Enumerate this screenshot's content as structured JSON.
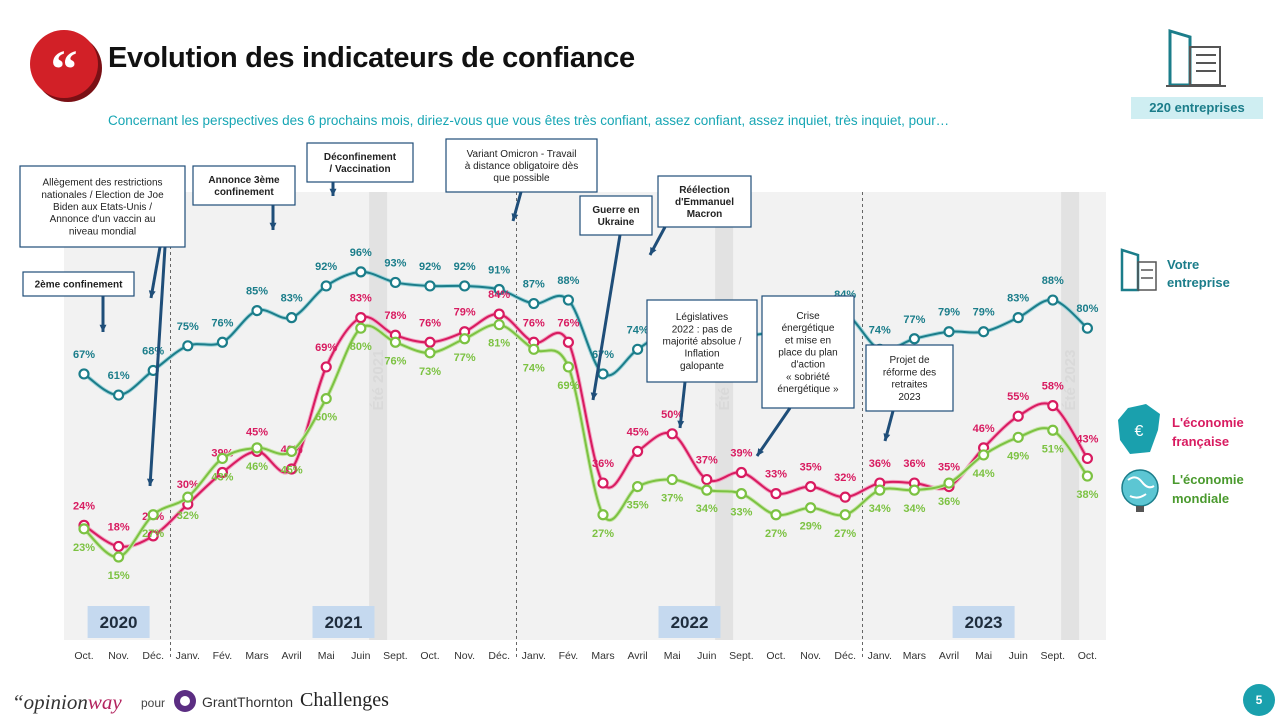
{
  "header": {
    "title": "Evolution des indicateurs de confiance",
    "subtitle": "Concernant les perspectives des 6 prochains mois, diriez-vous que vous êtes très confiant, assez confiant, assez inquiet, très inquiet, pour…",
    "sample": "220 entreprises",
    "quote_glyph": "“"
  },
  "footer": {
    "opinionway_prefix": "“opinion",
    "opinionway_suffix": "way",
    "pour": "pour",
    "grantthornton": "GrantThornton",
    "challenges": "Challenges",
    "page_number": "5"
  },
  "colors": {
    "teal": "#1b7d8a",
    "pink": "#d81b60",
    "green": "#7cc242",
    "callout_border": "#1f4e79",
    "year_badge": "#c5d9ef"
  },
  "chart_data": {
    "type": "line",
    "categories": [
      "Oct.",
      "Nov.",
      "Déc.",
      "Janv.",
      "Fév.",
      "Mars",
      "Avril",
      "Mai",
      "Juin",
      "Sept.",
      "Oct.",
      "Nov.",
      "Déc.",
      "Janv.",
      "Fév.",
      "Mars",
      "Avril",
      "Mai",
      "Juin",
      "Sept.",
      "Oct.",
      "Nov.",
      "Déc.",
      "Janv.",
      "Mars",
      "Avril",
      "Mai",
      "Juin",
      "Sept.",
      "Oct."
    ],
    "series": [
      {
        "name": "Votre entreprise",
        "color": "#1b7d8a",
        "values": [
          67,
          61,
          68,
          75,
          76,
          85,
          83,
          92,
          96,
          93,
          92,
          92,
          91,
          87,
          88,
          67,
          74,
          80,
          80,
          78,
          79,
          81,
          84,
          74,
          77,
          79,
          79,
          83,
          88,
          80
        ]
      },
      {
        "name": "L'économie française",
        "color": "#d81b60",
        "values": [
          24,
          18,
          21,
          30,
          39,
          45,
          40,
          69,
          83,
          78,
          76,
          79,
          84,
          76,
          76,
          36,
          45,
          50,
          37,
          39,
          33,
          35,
          32,
          36,
          36,
          35,
          46,
          55,
          58,
          43
        ]
      },
      {
        "name": "L'économie mondiale",
        "color": "#7cc242",
        "values": [
          23,
          15,
          27,
          32,
          43,
          46,
          45,
          60,
          80,
          76,
          73,
          77,
          81,
          74,
          69,
          27,
          35,
          37,
          34,
          33,
          27,
          29,
          27,
          34,
          34,
          36,
          44,
          49,
          51,
          38
        ]
      }
    ],
    "years": [
      {
        "label": "2020",
        "index": 1
      },
      {
        "label": "2021",
        "index": 7.5
      },
      {
        "label": "2022",
        "index": 17.5
      },
      {
        "label": "2023",
        "index": 26
      }
    ],
    "period_labels": [
      "Été 2021",
      "Été 2022",
      "Été 2023"
    ],
    "annotations": [
      {
        "lines": [
          "2ème confinement"
        ]
      },
      {
        "lines": [
          "Allègement des restrictions",
          "nationales / Election de Joe",
          "Biden aux Etats-Unis /",
          "Annonce d'un vaccin au",
          "niveau mondial"
        ]
      },
      {
        "lines": [
          "Annonce 3ème",
          "confinement"
        ]
      },
      {
        "lines": [
          "Déconfinement",
          "/ Vaccination"
        ]
      },
      {
        "lines": [
          "Variant Omicron - Travail",
          "à distance obligatoire dès",
          "que possible"
        ]
      },
      {
        "lines": [
          "Guerre en",
          "Ukraine"
        ]
      },
      {
        "lines": [
          "Réélection",
          "d'Emmanuel",
          "Macron"
        ]
      },
      {
        "lines": [
          "Législatives",
          "2022 : pas de",
          "majorité absolue /",
          "Inflation",
          "galopante"
        ]
      },
      {
        "lines": [
          "Crise",
          "énergétique",
          "et mise en",
          "place du plan",
          "d'action",
          "« sobriété",
          "énergétique »"
        ]
      },
      {
        "lines": [
          "Projet de",
          "réforme des",
          "retraites",
          "2023"
        ]
      }
    ],
    "ylim": [
      0,
      110
    ],
    "grid": false,
    "legend_position": "right"
  }
}
